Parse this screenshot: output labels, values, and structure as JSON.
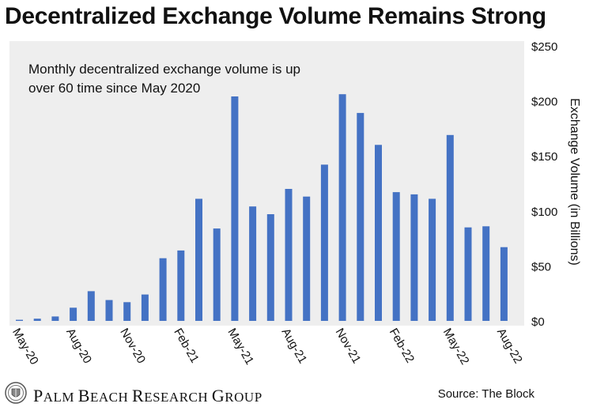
{
  "header": {
    "title": "Decentralized Exchange Volume Remains Strong"
  },
  "annotation": {
    "line1": "Monthly decentralized exchange volume is up",
    "line2": "over 60 time since May 2020"
  },
  "footer": {
    "brand": "Palm Beach Research Group",
    "source": "Source: The Block"
  },
  "colors": {
    "bar": "#4472C4",
    "plot_bg": "#EEEEEE",
    "text": "#111111"
  },
  "icons": {
    "logo": "crest-seal-icon"
  },
  "chart_data": {
    "type": "bar",
    "title": "Decentralized Exchange Volume Remains Strong",
    "xlabel": "",
    "ylabel": "Exchange Volume (in Billions)",
    "ylim": [
      0,
      250
    ],
    "yticks": [
      0,
      50,
      100,
      150,
      200,
      250
    ],
    "ytick_labels": [
      "$0",
      "$50",
      "$100",
      "$150",
      "$200",
      "$250"
    ],
    "y_axis_side": "right",
    "grid": false,
    "categories": [
      "May-20",
      "Jun-20",
      "Jul-20",
      "Aug-20",
      "Sep-20",
      "Oct-20",
      "Nov-20",
      "Dec-20",
      "Jan-21",
      "Feb-21",
      "Mar-21",
      "Apr-21",
      "May-21",
      "Jun-21",
      "Jul-21",
      "Aug-21",
      "Sep-21",
      "Oct-21",
      "Nov-21",
      "Dec-21",
      "Jan-22",
      "Feb-22",
      "Mar-22",
      "Apr-22",
      "May-22",
      "Jun-22",
      "Jul-22",
      "Aug-22"
    ],
    "xtick_labels": [
      "May-20",
      "Aug-20",
      "Nov-20",
      "Feb-21",
      "May-21",
      "Aug-21",
      "Nov-21",
      "Feb-22",
      "May-22",
      "Aug-22"
    ],
    "values": [
      1,
      2,
      4,
      12,
      27,
      19,
      17,
      24,
      57,
      64,
      111,
      84,
      204,
      104,
      97,
      120,
      113,
      142,
      206,
      189,
      160,
      117,
      115,
      111,
      169,
      85,
      86,
      67
    ]
  }
}
